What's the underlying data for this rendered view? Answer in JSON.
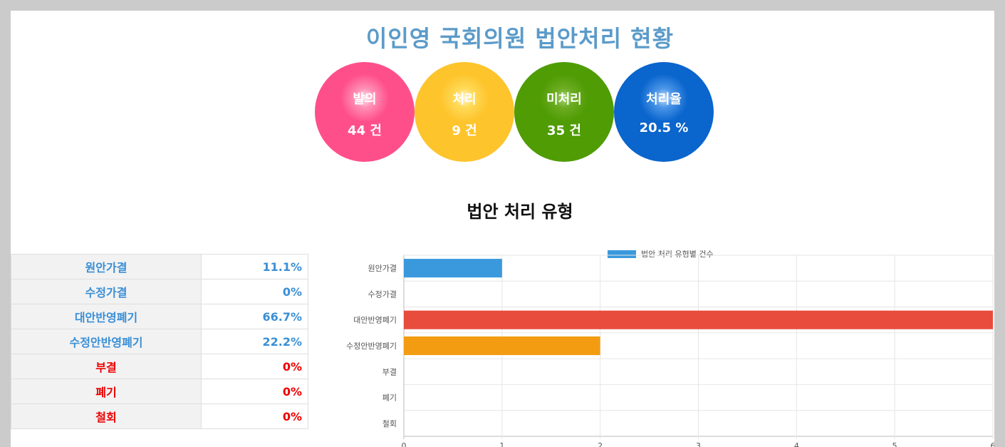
{
  "page": {
    "title": "이인영 국회의원 법안처리 현황",
    "section_title": "법안 처리 유형"
  },
  "stats": [
    {
      "label": "발의",
      "value": "44 건",
      "color": "#ff4f8b"
    },
    {
      "label": "처리",
      "value": "9 건",
      "color": "#fec42c"
    },
    {
      "label": "미처리",
      "value": "35 건",
      "color": "#4f9c04"
    },
    {
      "label": "처리율",
      "value": "20.5 %",
      "color": "#0a65cd"
    }
  ],
  "table": {
    "rows": [
      {
        "name": "원안가결",
        "pct": "11.1%",
        "tone": "blue"
      },
      {
        "name": "수정가결",
        "pct": "0%",
        "tone": "blue"
      },
      {
        "name": "대안반영폐기",
        "pct": "66.7%",
        "tone": "blue"
      },
      {
        "name": "수정안반영폐기",
        "pct": "22.2%",
        "tone": "blue"
      },
      {
        "name": "부결",
        "pct": "0%",
        "tone": "red"
      },
      {
        "name": "폐기",
        "pct": "0%",
        "tone": "red"
      },
      {
        "name": "철회",
        "pct": "0%",
        "tone": "red"
      }
    ]
  },
  "chart_data": {
    "type": "bar",
    "orientation": "horizontal",
    "title": "",
    "xlabel": "",
    "ylabel": "",
    "categories": [
      "원안가결",
      "수정가결",
      "대안반영폐기",
      "수정안반영폐기",
      "부결",
      "폐기",
      "철회"
    ],
    "series": [
      {
        "name": "법안 처리 유형별 건수",
        "values": [
          1,
          0,
          6,
          2,
          0,
          0,
          0
        ]
      }
    ],
    "bar_colors": [
      "#3a99dd",
      "#3a99dd",
      "#e84c3d",
      "#f39c12",
      "#3a99dd",
      "#3a99dd",
      "#3a99dd"
    ],
    "xlim": [
      0,
      6
    ],
    "x_ticks": [
      0,
      1,
      2,
      3,
      4,
      5,
      6
    ],
    "grid": true,
    "legend_position": "top-center"
  }
}
